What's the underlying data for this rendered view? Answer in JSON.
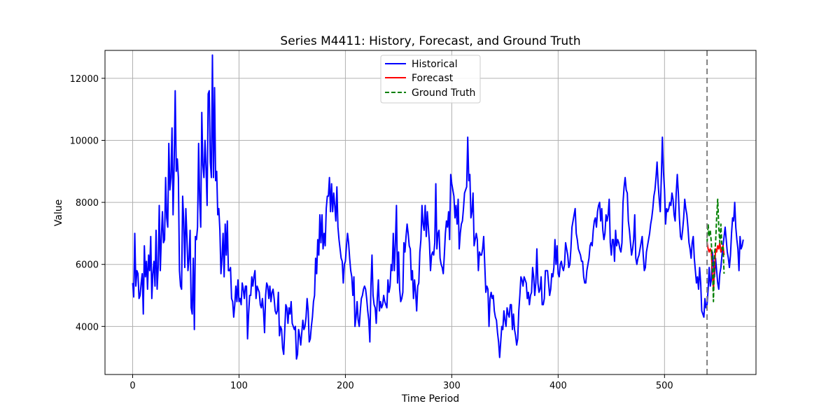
{
  "chart_data": {
    "type": "line",
    "title": "Series M4411: History, Forecast, and Ground Truth",
    "xlabel": "Time Period",
    "ylabel": "Value",
    "xlim": [
      -26,
      586
    ],
    "ylim": [
      2450,
      12900
    ],
    "x_ticks": [
      0,
      100,
      200,
      300,
      400,
      500
    ],
    "y_ticks": [
      4000,
      6000,
      8000,
      10000,
      12000
    ],
    "grid": true,
    "legend_position": "top-center",
    "forecast_start": 540,
    "series": [
      {
        "name": "Historical",
        "color": "#0000ff",
        "dash": "solid",
        "x_start": 0,
        "values": [
          5400,
          4950,
          7000,
          5300,
          5800,
          5700,
          4900,
          5000,
          5400,
          5700,
          4400,
          6600,
          5600,
          6100,
          5200,
          6300,
          5800,
          6900,
          4900,
          5700,
          6100,
          5300,
          7100,
          5200,
          5900,
          7900,
          5800,
          6900,
          7700,
          6700,
          6800,
          8800,
          7500,
          7200,
          9900,
          8400,
          8800,
          10400,
          7600,
          9200,
          11600,
          9000,
          9400,
          8800,
          5800,
          5300,
          5200,
          8200,
          7400,
          5900,
          7800,
          6900,
          5800,
          6200,
          7100,
          4600,
          4400,
          6200,
          3900,
          6900,
          6800,
          7200,
          9900,
          8100,
          7200,
          10900,
          9200,
          8800,
          10000,
          9100,
          7900,
          11500,
          11600,
          9300,
          8800,
          12750,
          8800,
          11700,
          8700,
          9000,
          7600,
          7800,
          7100,
          5700,
          6200,
          7000,
          5600,
          7300,
          6300,
          7400,
          5800,
          5800,
          5900,
          4900,
          4800,
          4300,
          4700,
          5300,
          4800,
          5500,
          4800,
          4900,
          4700,
          5400,
          5200,
          4900,
          5300,
          5300,
          3600,
          4400,
          5000,
          5000,
          5600,
          5300,
          5600,
          5800,
          4900,
          5300,
          5200,
          5100,
          4700,
          4600,
          4900,
          4500,
          3800,
          5000,
          5400,
          5300,
          4900,
          5300,
          4800,
          5100,
          5200,
          4900,
          4500,
          4400,
          4500,
          5100,
          3700,
          4000,
          3900,
          3300,
          3100,
          3900,
          4700,
          4600,
          4100,
          4600,
          4400,
          4800,
          4100,
          4000,
          3900,
          4000,
          2950,
          3100,
          3900,
          3700,
          3400,
          3800,
          4200,
          3900,
          4000,
          4300,
          4900,
          4500,
          3500,
          3600,
          4000,
          4300,
          4800,
          5000,
          6200,
          5700,
          6800,
          6300,
          7600,
          6700,
          7600,
          6500,
          7000,
          6600,
          7800,
          8200,
          8200,
          8800,
          7700,
          8600,
          7700,
          8300,
          7900,
          7400,
          8500,
          7200,
          6800,
          6500,
          6200,
          6100,
          5400,
          6000,
          6100,
          6600,
          7000,
          6700,
          6200,
          5800,
          5600,
          5000,
          5600,
          4000,
          4300,
          4800,
          4200,
          4000,
          4500,
          4900,
          5000,
          5200,
          5300,
          5200,
          4900,
          4500,
          4200,
          3500,
          5300,
          6300,
          5000,
          4700,
          4600,
          4100,
          4900,
          5500,
          4500,
          4800,
          4600,
          4700,
          5000,
          4800,
          4700,
          4600,
          5500,
          5100,
          5300,
          6000,
          5800,
          7000,
          5800,
          6700,
          7900,
          5400,
          6400,
          5200,
          4800,
          4900,
          5100,
          6700,
          6400,
          6900,
          7300,
          7000,
          6600,
          6500,
          5500,
          5800,
          4900,
          5500,
          5100,
          4500,
          5300,
          5400,
          6400,
          6800,
          7900,
          7300,
          7100,
          7900,
          6900,
          7700,
          7200,
          6700,
          5800,
          6300,
          6400,
          6300,
          6700,
          8600,
          6500,
          7000,
          7100,
          6200,
          6000,
          5900,
          5700,
          6300,
          7000,
          7400,
          7200,
          7700,
          6800,
          8900,
          8600,
          8400,
          8200,
          7500,
          7900,
          7300,
          8100,
          6500,
          7000,
          7300,
          7400,
          7800,
          8300,
          8400,
          8500,
          10100,
          8700,
          8900,
          7500,
          7700,
          8300,
          6600,
          6800,
          7000,
          6800,
          5800,
          6400,
          6300,
          6300,
          6500,
          6900,
          6000,
          5100,
          5300,
          5200,
          4000,
          4900,
          5100,
          4900,
          5000,
          4500,
          4300,
          4200,
          3800,
          3500,
          3000,
          3500,
          4000,
          3900,
          4500,
          4200,
          4000,
          4600,
          4400,
          4300,
          4700,
          4700,
          3900,
          4400,
          3900,
          3700,
          3400,
          3600,
          4500,
          5000,
          5600,
          5500,
          5300,
          5600,
          5500,
          5400,
          4900,
          5100,
          4700,
          5000,
          5100,
          5900,
          5600,
          5000,
          5400,
          6500,
          5400,
          5100,
          5200,
          5600,
          4700,
          4700,
          4900,
          5800,
          5800,
          5800,
          5400,
          5000,
          5200,
          5700,
          5600,
          5900,
          6800,
          6000,
          6600,
          5700,
          5600,
          6000,
          6100,
          5900,
          5800,
          6000,
          6700,
          6500,
          6300,
          5900,
          6000,
          6500,
          7200,
          7400,
          7600,
          7800,
          7000,
          6800,
          6500,
          6400,
          6300,
          6100,
          6100,
          5600,
          5400,
          5400,
          5800,
          6000,
          6200,
          6600,
          6700,
          6600,
          7100,
          7400,
          7500,
          7200,
          7700,
          7900,
          8000,
          7400,
          7800,
          7100,
          6800,
          7000,
          7600,
          7400,
          7600,
          8100,
          6700,
          6300,
          6800,
          6800,
          6100,
          7100,
          6600,
          6800,
          6700,
          6500,
          6400,
          6700,
          8000,
          8500,
          8800,
          8400,
          8300,
          7400,
          7100,
          6700,
          6300,
          6500,
          6800,
          7600,
          6200,
          6000,
          6200,
          6300,
          6500,
          6700,
          6900,
          6300,
          5800,
          5900,
          6400,
          6600,
          6800,
          7000,
          7300,
          7500,
          7800,
          8200,
          8400,
          8800,
          9300,
          8600,
          8100,
          7700,
          8800,
          10100,
          9000,
          8400,
          7300,
          7800,
          7700,
          7800,
          8000,
          7900,
          8300,
          8100,
          7600,
          7400,
          8300,
          8900,
          8300,
          7500,
          6900,
          6800,
          7100,
          7500,
          8100,
          7800,
          7600,
          7200,
          6700,
          6500,
          6200,
          6700,
          6900,
          6200,
          5800,
          5400,
          5600,
          5200,
          5900,
          5400,
          4500,
          4400,
          4300,
          4900,
          4600,
          4700,
          5200,
          5900,
          5300,
          5500,
          6400,
          6000,
          5600,
          6200,
          5800,
          5400,
          5200,
          5700,
          5900,
          6300,
          6600,
          6900,
          7200,
          6800,
          6400,
          6200,
          5900,
          6300,
          7000,
          7500,
          7400,
          8000,
          7200,
          6800,
          6500,
          5800,
          6900,
          6500,
          6600,
          6800
        ]
      },
      {
        "name": "Forecast",
        "color": "#ff0000",
        "dash": "solid",
        "x_start": 540,
        "values": [
          6700,
          6500,
          6400,
          6500,
          6400,
          5700,
          5200,
          5800,
          6500,
          6400,
          6600,
          6500,
          6700,
          6400,
          6500,
          6600,
          6300
        ]
      },
      {
        "name": "Ground Truth",
        "color": "#008000",
        "dash": "dashed",
        "x_start": 540,
        "values": [
          6700,
          7300,
          6900,
          7100,
          6700,
          6000,
          4800,
          6300,
          6700,
          7500,
          8100,
          7200,
          6700,
          7300,
          6500,
          6600,
          5700
        ]
      }
    ]
  }
}
